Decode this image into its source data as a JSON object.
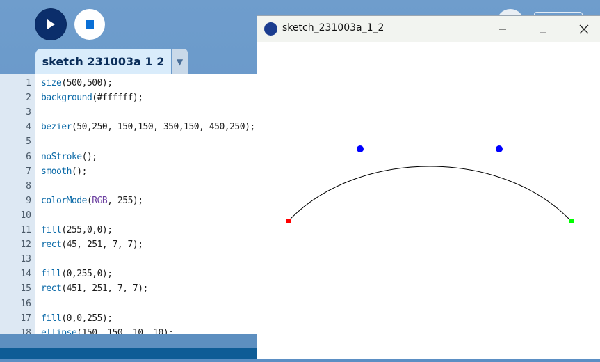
{
  "toolbar": {
    "run_icon": "play-icon",
    "stop_icon": "stop-icon"
  },
  "tab": {
    "label": "sketch 231003a 1 2",
    "dropdown_icon": "chevron-down-icon"
  },
  "editor": {
    "lines": [
      {
        "n": "1",
        "code": "size(500,500);"
      },
      {
        "n": "2",
        "code": "background(#ffffff);"
      },
      {
        "n": "3",
        "code": ""
      },
      {
        "n": "4",
        "code": "bezier(50,250, 150,150, 350,150, 450,250);"
      },
      {
        "n": "5",
        "code": ""
      },
      {
        "n": "6",
        "code": "noStroke();"
      },
      {
        "n": "7",
        "code": "smooth();"
      },
      {
        "n": "8",
        "code": ""
      },
      {
        "n": "9",
        "code": "colorMode(RGB, 255);"
      },
      {
        "n": "10",
        "code": ""
      },
      {
        "n": "11",
        "code": "fill(255,0,0);"
      },
      {
        "n": "12",
        "code": "rect(45, 251, 7, 7);"
      },
      {
        "n": "13",
        "code": ""
      },
      {
        "n": "14",
        "code": "fill(0,255,0);"
      },
      {
        "n": "15",
        "code": "rect(451, 251, 7, 7);"
      },
      {
        "n": "16",
        "code": ""
      },
      {
        "n": "17",
        "code": "fill(0,0,255);"
      },
      {
        "n": "18",
        "code": "ellipse(150, 150, 10, 10);"
      }
    ]
  },
  "sketch_window": {
    "title": "sketch_231003a_1_2",
    "minimize_icon": "minimize-icon",
    "maximize_icon": "maximize-icon",
    "close_icon": "close-icon",
    "canvas": {
      "bezier": [
        50,
        250,
        150,
        150,
        350,
        150,
        450,
        250
      ],
      "red_rect": [
        45,
        251,
        7,
        7
      ],
      "green_rect": [
        451,
        251,
        7,
        7
      ],
      "blue_ellipses": [
        [
          150,
          150,
          10,
          10
        ],
        [
          350,
          150,
          10,
          10
        ]
      ],
      "colors": {
        "red": "#ff0000",
        "green": "#00ff00",
        "blue": "#0000ff",
        "stroke": "#000000"
      }
    }
  }
}
